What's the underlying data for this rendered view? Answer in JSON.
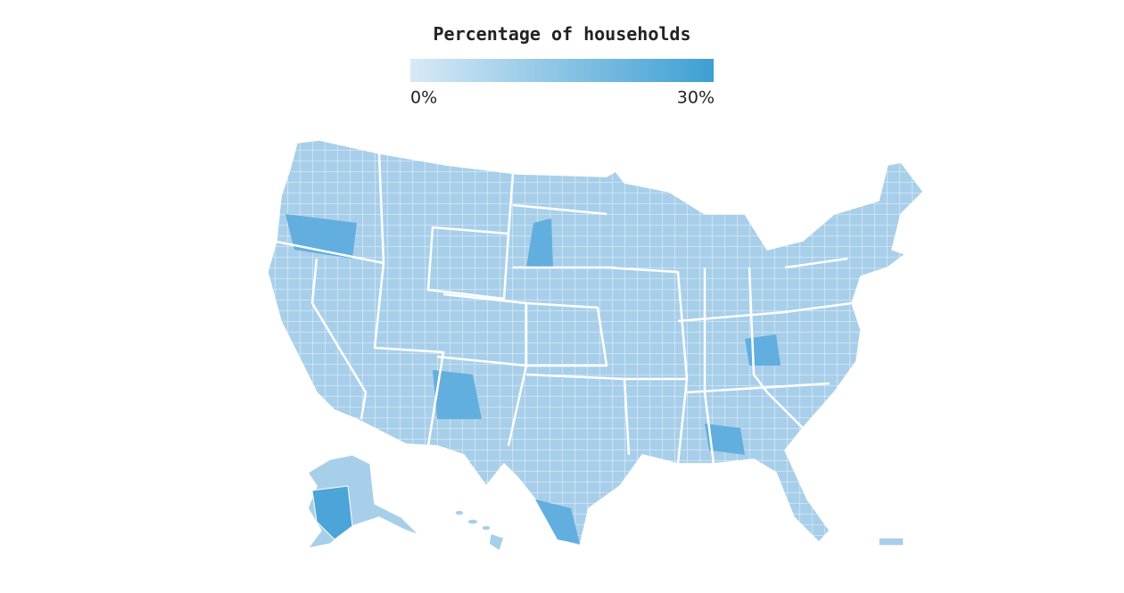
{
  "legend": {
    "title": "Percentage of households",
    "min_label": "0%",
    "max_label": "30%",
    "color_low": "#d8e9f6",
    "color_high": "#3d9fd3"
  }
}
